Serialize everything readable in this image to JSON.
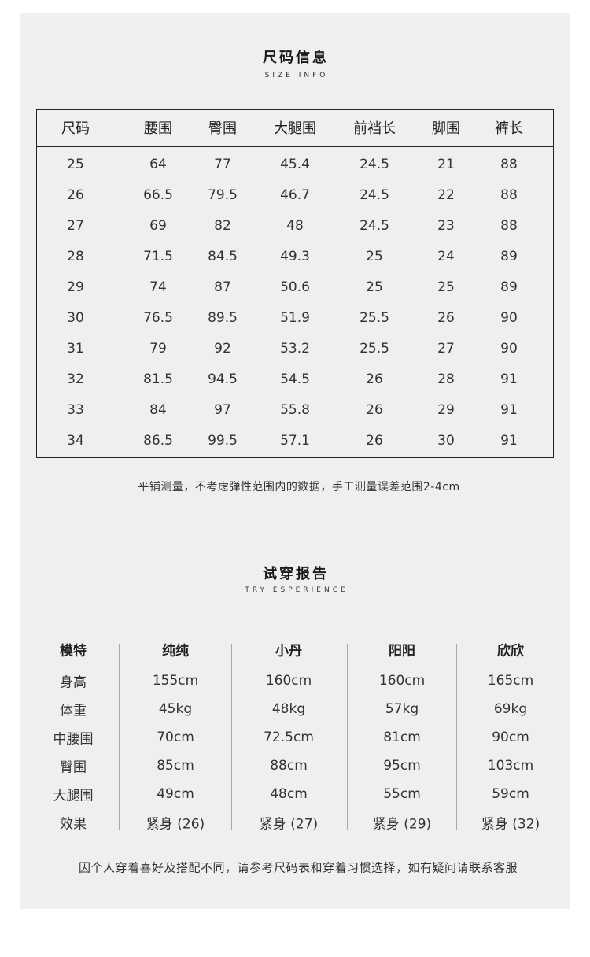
{
  "size_info": {
    "title": "尺码信息",
    "subtitle": "SIZE INFO",
    "headers": [
      "尺码",
      "腰围",
      "臀围",
      "大腿围",
      "前裆长",
      "脚围",
      "裤长"
    ],
    "rows": [
      [
        "25",
        "64",
        "77",
        "45.4",
        "24.5",
        "21",
        "88"
      ],
      [
        "26",
        "66.5",
        "79.5",
        "46.7",
        "24.5",
        "22",
        "88"
      ],
      [
        "27",
        "69",
        "82",
        "48",
        "24.5",
        "23",
        "88"
      ],
      [
        "28",
        "71.5",
        "84.5",
        "49.3",
        "25",
        "24",
        "89"
      ],
      [
        "29",
        "74",
        "87",
        "50.6",
        "25",
        "25",
        "89"
      ],
      [
        "30",
        "76.5",
        "89.5",
        "51.9",
        "25.5",
        "26",
        "90"
      ],
      [
        "31",
        "79",
        "92",
        "53.2",
        "25.5",
        "27",
        "90"
      ],
      [
        "32",
        "81.5",
        "94.5",
        "54.5",
        "26",
        "28",
        "91"
      ],
      [
        "33",
        "84",
        "97",
        "55.8",
        "26",
        "29",
        "91"
      ],
      [
        "34",
        "86.5",
        "99.5",
        "57.1",
        "26",
        "30",
        "91"
      ]
    ],
    "note": "平铺测量，不考虑弹性范围内的数据，手工测量误差范围2-4cm"
  },
  "try_report": {
    "title": "试穿报告",
    "subtitle": "TRY ESPERIENCE",
    "headers": [
      "模特",
      "纯纯",
      "小丹",
      "阳阳",
      "欣欣"
    ],
    "rows": [
      [
        "身高",
        "155cm",
        "160cm",
        "160cm",
        "165cm"
      ],
      [
        "体重",
        "45kg",
        "48kg",
        "57kg",
        "69kg"
      ],
      [
        "中腰围",
        "70cm",
        "72.5cm",
        "81cm",
        "90cm"
      ],
      [
        "臀围",
        "85cm",
        "88cm",
        "95cm",
        "103cm"
      ],
      [
        "大腿围",
        "49cm",
        "48cm",
        "55cm",
        "59cm"
      ],
      [
        "效果",
        "紧身 (26)",
        "紧身 (27)",
        "紧身 (29)",
        "紧身 (32)"
      ]
    ],
    "footer": "因个人穿着喜好及搭配不同，请参考尺码表和穿着习惯选择，如有疑问请联系客服"
  }
}
